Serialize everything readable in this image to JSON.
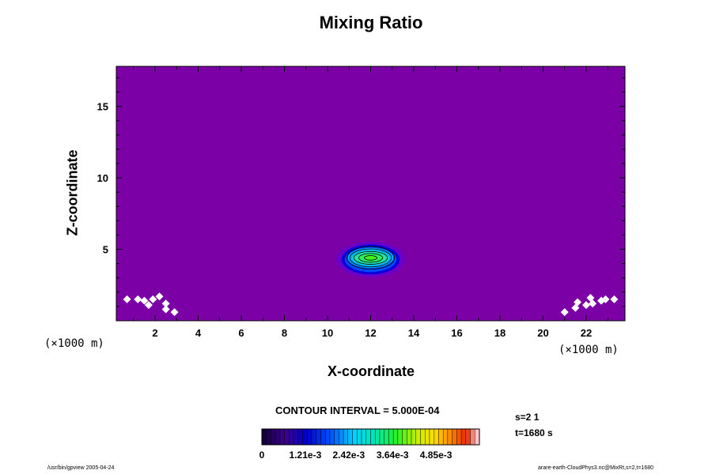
{
  "page": {
    "footer_left": "/usr/bin/gpview 2005-04-24",
    "footer_right": "arare-earth-CloudPhys3.nc@MixRt,s=2,t=1680"
  },
  "colors": {
    "background": "#7b00a6",
    "missing": "#ffffff",
    "contour_line": "#000000"
  },
  "chart_data": {
    "type": "heatmap",
    "title": "Mixing Ratio",
    "xlabel": "X-coordinate",
    "ylabel": "Z-coordinate",
    "x_unit": "(×1000 m)",
    "y_unit": "(×1000 m)",
    "xlim": [
      0.2,
      23.8
    ],
    "ylim": [
      0.0,
      17.8
    ],
    "x_ticks": [
      2,
      4,
      6,
      8,
      10,
      12,
      14,
      16,
      18,
      20,
      22
    ],
    "y_ticks": [
      5,
      10,
      15
    ],
    "grid": false,
    "field": {
      "description_max": 0.0058,
      "peak_center": {
        "x": 12.0,
        "z": 4.4
      },
      "levels": [
        {
          "value": 0.0001,
          "color": "#6a00c8",
          "rx": 1.6,
          "rz": 1.25
        },
        {
          "value": 0.0006,
          "color": "#0a00d8",
          "rx": 1.35,
          "rz": 1.05
        },
        {
          "value": 0.0012,
          "color": "#0048ff",
          "rx": 1.2,
          "rz": 0.88
        },
        {
          "value": 0.0024,
          "color": "#00b0ff",
          "rx": 1.05,
          "rz": 0.7
        },
        {
          "value": 0.0036,
          "color": "#20e0b0",
          "rx": 0.85,
          "rz": 0.5
        },
        {
          "value": 0.0045,
          "color": "#30ee60",
          "rx": 0.6,
          "rz": 0.34
        },
        {
          "value": 0.0053,
          "color": "#40f020",
          "rx": 0.32,
          "rz": 0.18
        }
      ],
      "contour_interval": 0.0005
    },
    "missing_value_points": [
      {
        "x": 0.7,
        "z": 1.5
      },
      {
        "x": 1.2,
        "z": 1.5
      },
      {
        "x": 1.5,
        "z": 1.4
      },
      {
        "x": 1.9,
        "z": 1.5
      },
      {
        "x": 1.7,
        "z": 1.1
      },
      {
        "x": 2.2,
        "z": 1.7
      },
      {
        "x": 2.5,
        "z": 1.2
      },
      {
        "x": 2.5,
        "z": 0.8
      },
      {
        "x": 2.9,
        "z": 0.6
      },
      {
        "x": 21.0,
        "z": 0.6
      },
      {
        "x": 21.5,
        "z": 0.9
      },
      {
        "x": 21.6,
        "z": 1.3
      },
      {
        "x": 22.0,
        "z": 1.1
      },
      {
        "x": 22.2,
        "z": 1.6
      },
      {
        "x": 22.7,
        "z": 1.4
      },
      {
        "x": 22.9,
        "z": 1.5
      },
      {
        "x": 23.3,
        "z": 1.5
      },
      {
        "x": 22.3,
        "z": 1.2
      }
    ],
    "colorbar": {
      "labels": [
        "0",
        "1.21e-3",
        "2.42e-3",
        "3.64e-3",
        "4.85e-3"
      ],
      "min": 0,
      "max": 0.00606,
      "n_colors": 48
    },
    "contour_interval_text": "CONTOUR INTERVAL = 5.000E-04",
    "s_text": "s=2 1",
    "t_text": "t=1680 s"
  }
}
